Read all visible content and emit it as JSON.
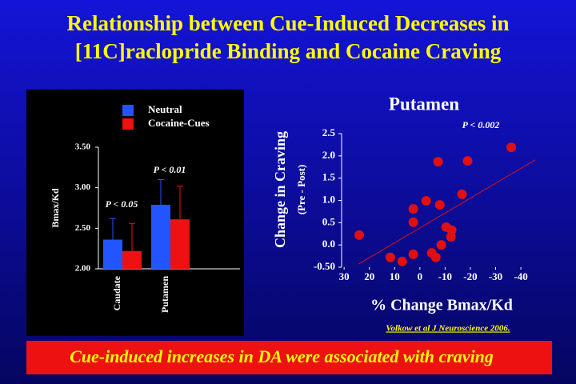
{
  "title": [
    "Relationship between Cue-Induced Decreases in",
    "[11C]raclopride Binding and Cocaine Craving"
  ],
  "chart_data": [
    {
      "type": "bar",
      "categories": [
        "Caudate",
        "Putamen"
      ],
      "series": [
        {
          "name": "Neutral",
          "color": "#2255ff",
          "values": [
            2.36,
            2.79
          ],
          "errors": [
            0.26,
            0.31
          ]
        },
        {
          "name": "Cocaine-Cues",
          "color": "#ee1111",
          "values": [
            2.22,
            2.61
          ],
          "errors": [
            0.34,
            0.41
          ]
        }
      ],
      "y_label": "Bmax/Kd",
      "ylim": [
        2.0,
        3.5
      ],
      "yticks": [
        {
          "value": 2.0,
          "label": "2.00"
        },
        {
          "value": 2.5,
          "label": "2.50"
        },
        {
          "value": 3.0,
          "label": "3.00"
        },
        {
          "value": 3.5,
          "label": "3.50"
        }
      ],
      "annotations": [
        "P < 0.05",
        "P < 0.01"
      ]
    },
    {
      "type": "scatter",
      "title": "Putamen",
      "y_label": [
        "Change in Craving",
        "(Pre - Post)"
      ],
      "x_label": "% Change Bmax/Kd",
      "annotation": "P < 0.002",
      "color": "#e01010",
      "x": [
        24.0,
        11.7,
        7.0,
        2.6,
        2.6,
        2.6,
        -2.5,
        -7.2,
        -7.9,
        -4.7,
        -6.3,
        -8.5,
        -10.4,
        -12.6,
        -12.3,
        -16.7,
        -18.9,
        -36.2
      ],
      "values": [
        0.22,
        -0.28,
        -0.37,
        -0.21,
        0.51,
        0.81,
        0.99,
        1.87,
        0.9,
        -0.18,
        -0.28,
        0.0,
        0.4,
        0.33,
        0.18,
        1.14,
        1.89,
        2.19
      ],
      "trendline": {
        "color": "#dd1111",
        "x": [
          24.3,
          -45.7
        ],
        "y": [
          -0.43,
          1.91
        ]
      },
      "xlim": [
        31,
        -46
      ],
      "ylim": [
        -0.5,
        2.5
      ],
      "xticks": [
        30,
        20,
        10,
        0,
        -10,
        -20,
        -30,
        -40
      ],
      "yticks": [
        {
          "value": -0.5,
          "label": "-0.50"
        },
        {
          "value": 0.0,
          "label": "0.0"
        },
        0.5,
        {
          "value": 1.0,
          "label": "1.0"
        },
        1.5,
        {
          "value": 2.0,
          "label": "2.0"
        },
        2.5
      ]
    }
  ],
  "citation": "Volkow et al J Neuroscience 2006.",
  "footer": "Cue-induced increases in DA were associated with craving"
}
